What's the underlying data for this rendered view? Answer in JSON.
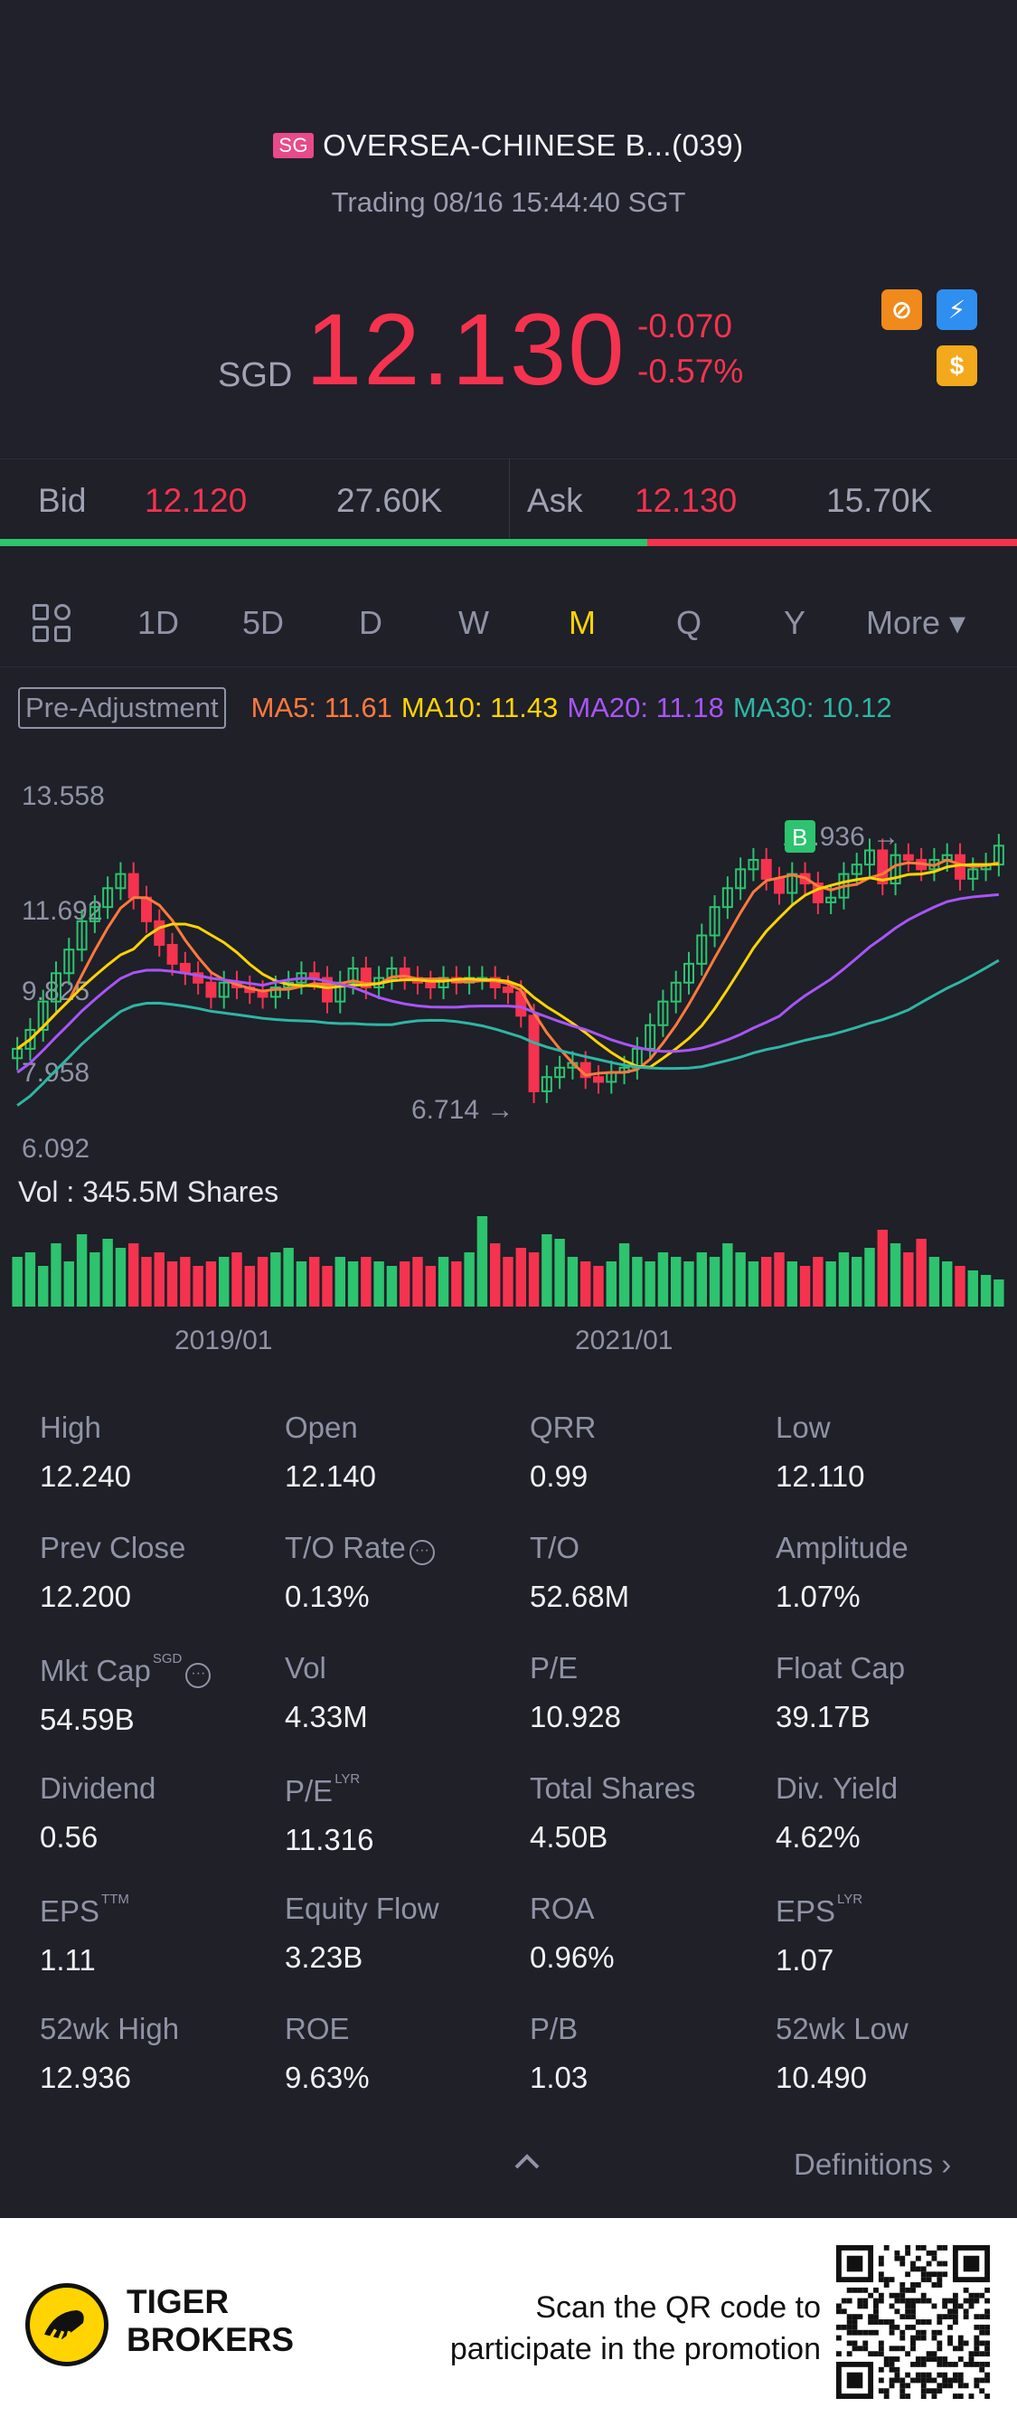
{
  "header": {
    "market_badge": "SG",
    "title": "OVERSEA-CHINESE B...(039)",
    "status": "Trading 08/16 15:44:40 SGT",
    "currency": "SGD",
    "price": "12.130",
    "change": "-0.070",
    "change_pct": "-0.57%",
    "colors": {
      "down": "#f5334f",
      "up": "#2dc36f",
      "active": "#ffd400"
    }
  },
  "bidask": {
    "bid_label": "Bid",
    "bid_price": "12.120",
    "bid_size": "27.60K",
    "ask_label": "Ask",
    "ask_price": "12.130",
    "ask_size": "15.70K",
    "bid_ratio": 0.636
  },
  "toolbar": {
    "grid_icon": "grid-icon",
    "periods": [
      "1D",
      "5D",
      "D",
      "W",
      "M",
      "Q",
      "Y"
    ],
    "active_period": "M",
    "more_label": "More ▾"
  },
  "indicators": {
    "pre_adjustment": "Pre-Adjustment",
    "ma5": "MA5: 11.61",
    "ma10": "MA10: 11.43",
    "ma20": "MA20: 11.18",
    "ma30": "MA30: 10.12",
    "colors": {
      "ma5": "#ff7a3d",
      "ma10": "#ffd400",
      "ma20": "#a855f7",
      "ma30": "#2fb5a5"
    }
  },
  "chart_data": {
    "type": "candlestick",
    "y_ticks": [
      "13.558",
      "11.692",
      "9.825",
      "7.958",
      "6.092"
    ],
    "ylim": [
      6.092,
      13.558
    ],
    "max_label": "12.936",
    "min_label": "6.714",
    "x_ticks": [
      "2019/01",
      "2021/01"
    ],
    "volume_label": "Vol  : 345.5M Shares",
    "marker": "B",
    "close": [
      8.2,
      8.6,
      9.2,
      9.8,
      10.3,
      10.9,
      11.2,
      11.6,
      11.9,
      11.4,
      10.9,
      10.4,
      10.0,
      9.8,
      9.6,
      9.3,
      9.6,
      9.5,
      9.4,
      9.3,
      9.5,
      9.6,
      9.8,
      9.7,
      9.2,
      9.6,
      9.9,
      9.5,
      9.7,
      9.9,
      9.7,
      9.6,
      9.5,
      9.7,
      9.6,
      9.7,
      9.7,
      9.5,
      9.4,
      8.9,
      7.3,
      7.6,
      7.8,
      7.9,
      7.6,
      7.5,
      7.7,
      7.8,
      8.2,
      8.7,
      9.2,
      9.6,
      10.0,
      10.6,
      11.2,
      11.6,
      12.0,
      12.2,
      11.8,
      11.5,
      11.9,
      11.7,
      11.3,
      11.4,
      11.9,
      12.1,
      12.4,
      11.7,
      12.3,
      12.2,
      12.0,
      12.2,
      12.3,
      11.8,
      12.0,
      12.1,
      12.5
    ],
    "volume": [
      0.55,
      0.6,
      0.45,
      0.7,
      0.5,
      0.8,
      0.6,
      0.75,
      0.65,
      0.7,
      0.55,
      0.6,
      0.5,
      0.55,
      0.45,
      0.5,
      0.55,
      0.6,
      0.45,
      0.55,
      0.6,
      0.65,
      0.5,
      0.55,
      0.45,
      0.55,
      0.5,
      0.55,
      0.5,
      0.45,
      0.5,
      0.55,
      0.45,
      0.55,
      0.5,
      0.6,
      1.0,
      0.7,
      0.55,
      0.65,
      0.6,
      0.8,
      0.75,
      0.55,
      0.5,
      0.45,
      0.5,
      0.7,
      0.55,
      0.5,
      0.6,
      0.55,
      0.5,
      0.6,
      0.55,
      0.7,
      0.6,
      0.5,
      0.55,
      0.6,
      0.5,
      0.45,
      0.55,
      0.5,
      0.6,
      0.55,
      0.65,
      0.85,
      0.7,
      0.6,
      0.75,
      0.55,
      0.5,
      0.45,
      0.4,
      0.35,
      0.3
    ]
  },
  "stats": [
    {
      "label": "High",
      "value": "12.240"
    },
    {
      "label": "Open",
      "value": "12.140"
    },
    {
      "label": "QRR",
      "value": "0.99"
    },
    {
      "label": "Low",
      "value": "12.110"
    },
    {
      "label": "Prev Close",
      "value": "12.200"
    },
    {
      "label": "T/O Rate",
      "value": "0.13%"
    },
    {
      "label": "T/O",
      "value": "52.68M"
    },
    {
      "label": "Amplitude",
      "value": "1.07%"
    },
    {
      "label": "Mkt Cap",
      "sup": "SGD",
      "value": "54.59B"
    },
    {
      "label": "Vol",
      "value": "4.33M"
    },
    {
      "label": "P/E",
      "value": "10.928"
    },
    {
      "label": "Float Cap",
      "value": "39.17B"
    },
    {
      "label": "Dividend",
      "value": "0.56"
    },
    {
      "label": "P/E",
      "sup": "LYR",
      "value": "11.316"
    },
    {
      "label": "Total Shares",
      "value": "4.50B"
    },
    {
      "label": "Div. Yield",
      "value": "4.62%"
    },
    {
      "label": "EPS",
      "sup": "TTM",
      "value": "1.11"
    },
    {
      "label": "Equity Flow",
      "value": "3.23B"
    },
    {
      "label": "ROA",
      "value": "0.96%"
    },
    {
      "label": "EPS",
      "sup": "LYR",
      "value": "1.07"
    },
    {
      "label": "52wk High",
      "value": "12.936"
    },
    {
      "label": "ROE",
      "value": "9.63%"
    },
    {
      "label": "P/B",
      "value": "1.03"
    },
    {
      "label": "52wk Low",
      "value": "10.490"
    }
  ],
  "definitions_label": "Definitions",
  "footer": {
    "brand_line1": "TIGER",
    "brand_line2": "BROKERS",
    "promo_line1": "Scan the QR code to",
    "promo_line2": "participate in the promotion"
  }
}
